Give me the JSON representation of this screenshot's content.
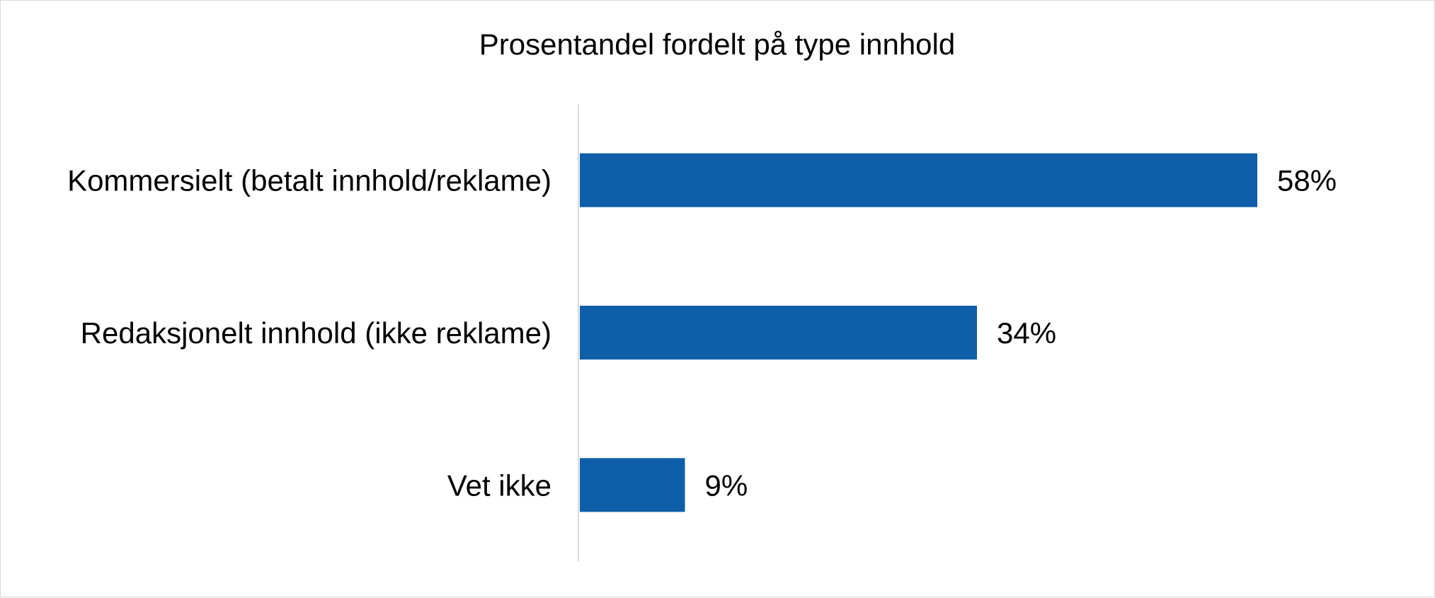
{
  "chart_data": {
    "type": "bar",
    "orientation": "horizontal",
    "title": "Prosentandel fordelt på type innhold",
    "categories": [
      "Kommersielt (betalt innhold/reklame)",
      "Redaksjonelt innhold (ikke reklame)",
      "Vet ikke"
    ],
    "values": [
      58,
      34,
      9
    ],
    "value_labels": [
      "58%",
      "34%",
      "9%"
    ],
    "xlim": [
      0,
      100
    ],
    "xlabel": "",
    "ylabel": "",
    "grid": false,
    "legend": "none",
    "bar_color": "#0f5ea8",
    "axis_color": "#d9d9d9"
  }
}
